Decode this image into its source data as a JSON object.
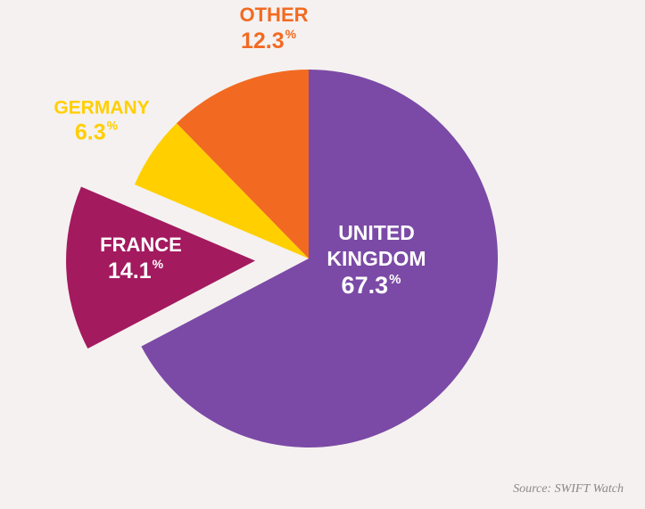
{
  "chart_data": {
    "type": "pie",
    "slices": [
      {
        "name": "UNITED KINGDOM",
        "name_lines": [
          "UNITED",
          "KINGDOM"
        ],
        "value": 67.3,
        "display": "67.3",
        "color": "#7b4aa6",
        "label_color": "#ffffff",
        "exploded": false,
        "label_position": "inside"
      },
      {
        "name": "FRANCE",
        "name_lines": [
          "FRANCE"
        ],
        "value": 14.1,
        "display": "14.1",
        "color": "#a31a5f",
        "label_color": "#ffffff",
        "exploded": true,
        "label_position": "inside"
      },
      {
        "name": "GERMANY",
        "name_lines": [
          "GERMANY"
        ],
        "value": 6.3,
        "display": "6.3",
        "color": "#ffcf00",
        "label_color": "#ffcf00",
        "exploded": false,
        "label_position": "outside"
      },
      {
        "name": "OTHER",
        "name_lines": [
          "OTHER"
        ],
        "value": 12.3,
        "display": "12.3",
        "color": "#f26a21",
        "label_color": "#f26a21",
        "exploded": false,
        "label_position": "outside"
      }
    ],
    "percent_symbol": "%"
  },
  "source": "Source: SWIFT Watch"
}
